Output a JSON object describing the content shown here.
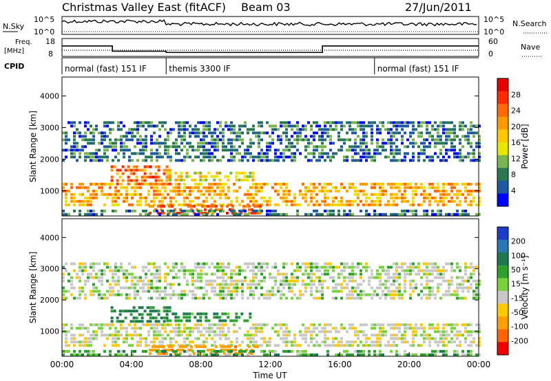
{
  "header": {
    "title": "Christmas Valley East (fitACF)",
    "beam": "Beam 03",
    "date": "27/Jun/2011"
  },
  "strips": {
    "nsky_label": "N.Sky",
    "nsearch_label": "N.Search",
    "noise_scale_top": "10^5",
    "noise_scale_bottom": "10^0",
    "freq_label_1": "Freq.",
    "freq_label_2": "[MHz]",
    "freq_ticks": [
      "18",
      "8"
    ],
    "nave_label": "Nave",
    "nave_ticks": [
      "60",
      "0"
    ],
    "cpid_label": "CPID",
    "cpid_modes": [
      {
        "label": "normal (fast) 151 IF",
        "start": 0.0,
        "end": 6.0
      },
      {
        "label": "themis 3300 IF",
        "start": 6.0,
        "end": 18.0
      },
      {
        "label": "normal (fast) 151 IF",
        "start": 18.0,
        "end": 24.0
      }
    ]
  },
  "axes": {
    "ylabel": "Slant Range [km]",
    "xlabel": "Time UT",
    "yticks": [
      "4000",
      "3000",
      "2000",
      "1000"
    ],
    "xticks": [
      "00:00",
      "04:00",
      "08:00",
      "12:00",
      "16:00",
      "20:00",
      "00:00"
    ]
  },
  "colorbars": {
    "power": {
      "label": "Power [dB]",
      "ticks": [
        "28",
        "24",
        "20",
        "16",
        "12",
        "8",
        "4"
      ],
      "colors": [
        "#e60000",
        "#ff2a00",
        "#ff6a00",
        "#ff9a00",
        "#ffc800",
        "#e6e600",
        "#78b450",
        "#287850",
        "#1e5aa0",
        "#0000ff"
      ]
    },
    "velocity": {
      "label": "Velocity [m s⁻¹]",
      "ticks": [
        "200",
        "100",
        "50",
        "15",
        "-15",
        "-50",
        "-100",
        "-200"
      ],
      "colors": [
        "#1e3cc8",
        "#2878b4",
        "#1e7850",
        "#2ea02e",
        "#78d23c",
        "#c8c8c8",
        "#ffc800",
        "#ffa000",
        "#ff6400",
        "#f00000"
      ]
    }
  },
  "chart_data": {
    "type": "heatmap",
    "title": "Christmas Valley East (fitACF)",
    "xlabel": "Time UT",
    "ylabel": "Slant Range [km]",
    "xlim": [
      0,
      24
    ],
    "ylim": [
      200,
      4600
    ],
    "panels": [
      "Power [dB]",
      "Velocity [m s⁻¹]"
    ],
    "freq_mhz": [
      {
        "start": 0.0,
        "end": 2.9,
        "value": 14
      },
      {
        "start": 2.9,
        "end": 6.0,
        "value": 10.5
      },
      {
        "start": 6.0,
        "end": 15.0,
        "value": 9.7
      },
      {
        "start": 15.0,
        "end": 24.0,
        "value": 14
      }
    ],
    "echo_regions": [
      {
        "t0": 0.0,
        "t1": 24.0,
        "r0": 550,
        "r1": 1250,
        "power_db": 20,
        "velocity": -5
      },
      {
        "t0": 2.8,
        "t1": 6.2,
        "r0": 1250,
        "r1": 1800,
        "power_db": 24,
        "velocity": 40
      },
      {
        "t0": 6.0,
        "t1": 11.0,
        "r0": 1300,
        "r1": 1600,
        "power_db": 16,
        "velocity": 30
      },
      {
        "t0": 5.0,
        "t1": 11.5,
        "r0": 300,
        "r1": 550,
        "power_db": 24,
        "velocity": -60
      },
      {
        "t0": 0.0,
        "t1": 24.0,
        "r0": 200,
        "r1": 400,
        "power_db": 8,
        "velocity": 20
      },
      {
        "t0": 0.0,
        "t1": 24.0,
        "r0": 2000,
        "r1": 3200,
        "power_db": 8,
        "velocity": 0
      }
    ]
  }
}
